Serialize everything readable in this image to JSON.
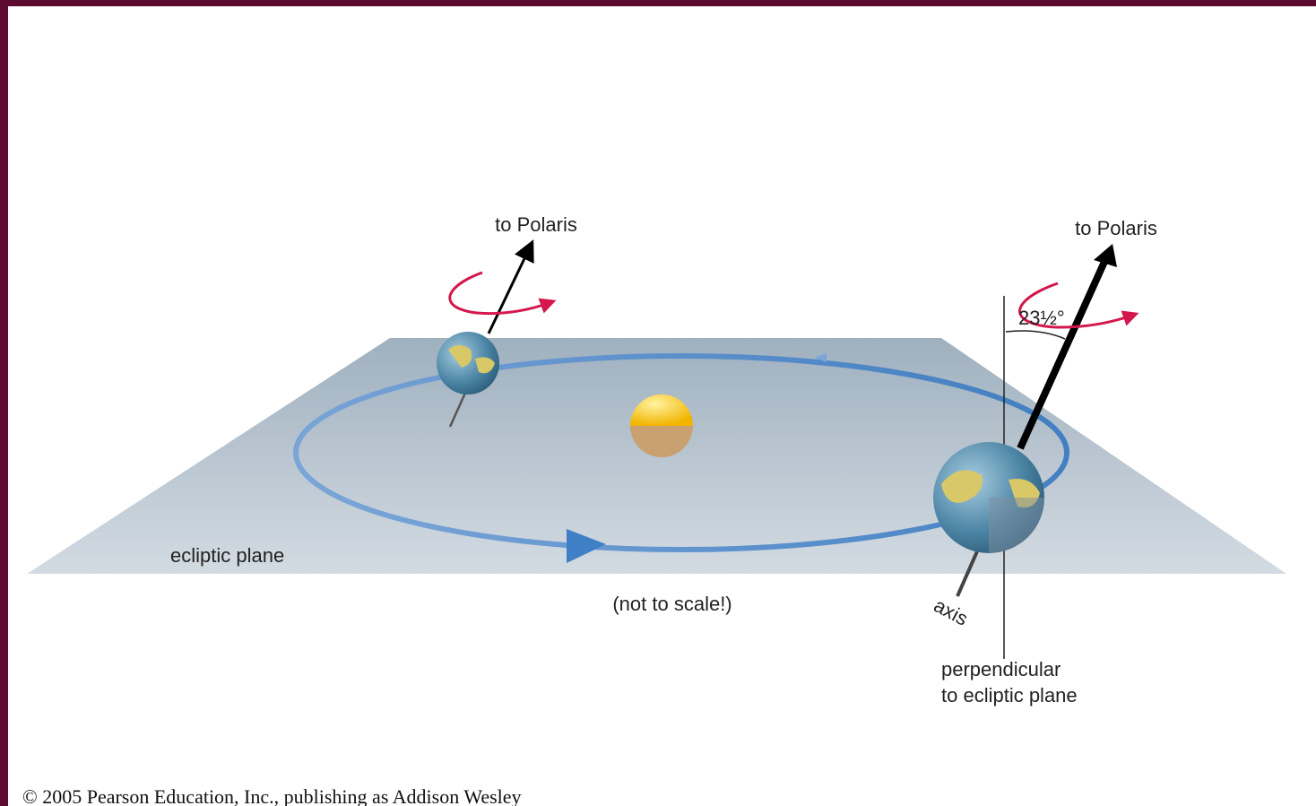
{
  "labels": {
    "polaris_left": "to Polaris",
    "polaris_right": "to Polaris",
    "tilt_angle": "23½°",
    "ecliptic_plane": "ecliptic plane",
    "scale_note": "(not to scale!)",
    "axis": "axis",
    "perpendicular": [
      "perpendicular",
      "to ecliptic plane"
    ]
  },
  "footer": {
    "copyright": "© 2005 Pearson Education, Inc., publishing as Addison Wesley"
  }
}
